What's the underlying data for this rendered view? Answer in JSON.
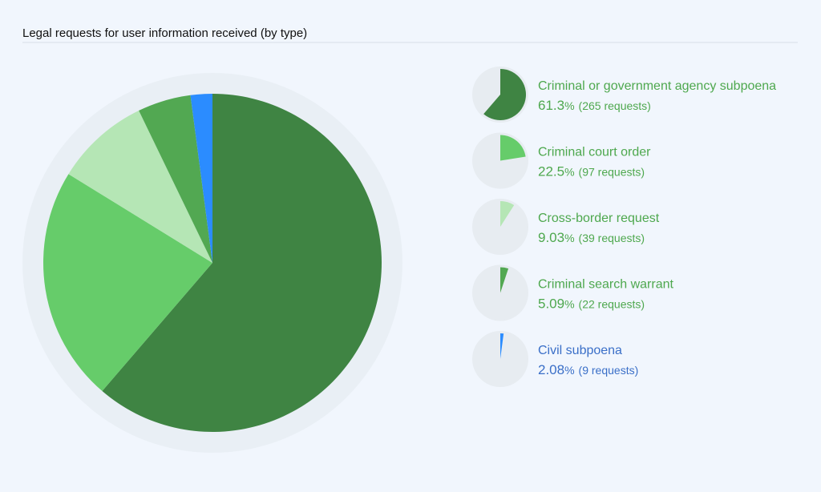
{
  "chart_data": {
    "type": "pie",
    "title": "Legal requests for user information received (by type)",
    "categories": [
      "Criminal or government agency subpoena",
      "Criminal court order",
      "Cross-border request",
      "Criminal search warrant",
      "Civil subpoena"
    ],
    "values": [
      61.3,
      22.5,
      9.03,
      5.09,
      2.08
    ],
    "unit": "%",
    "counts": [
      265,
      97,
      39,
      22,
      9
    ],
    "count_labels": [
      "(265 requests)",
      "(97 requests)",
      "(39 requests)",
      "(22 requests)",
      "(9 requests)"
    ],
    "colors": [
      "#3f8443",
      "#66cc6a",
      "#b5e6b5",
      "#52a852",
      "#2b8cff"
    ],
    "label_colors": [
      "#4ea84e",
      "#4ea84e",
      "#4ea84e",
      "#4ea84e",
      "#3a6fc8"
    ]
  }
}
